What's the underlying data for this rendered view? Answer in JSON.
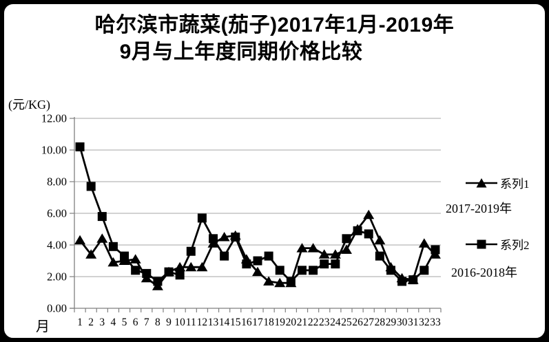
{
  "title": {
    "line1": "哈尔滨市蔬菜(茄子)2017年1月-2019年",
    "line2": "9月与上年度同期价格比较"
  },
  "y_axis_unit": "(元/KG)",
  "x_axis_title": "月",
  "legend": {
    "items": [
      {
        "label": "系列1",
        "sublabel": "2017-2019年",
        "marker": "triangle"
      },
      {
        "label": "系列2",
        "sublabel": "2016-2018年",
        "marker": "square"
      }
    ]
  },
  "colors": {
    "series": "#000000",
    "gridline": "#A6A6A6",
    "axis": "#7F7F7F",
    "background": "#FFFFFF",
    "frame": "#000000"
  },
  "chart_data": {
    "type": "line",
    "title": "哈尔滨市蔬菜(茄子)2017年1月-2019年9月与上年度同期价格比较",
    "xlabel": "月",
    "ylabel": "(元/KG)",
    "ylim": [
      0,
      12
    ],
    "ytick_step": 2,
    "ytick_labels": [
      "0.00",
      "2.00",
      "4.00",
      "6.00",
      "8.00",
      "10.00",
      "12.00"
    ],
    "grid": true,
    "legend_position": "right",
    "x": [
      "1",
      "2",
      "3",
      "4",
      "5",
      "6",
      "7",
      "8",
      "9",
      "10",
      "11",
      "12",
      "13",
      "14",
      "15",
      "16",
      "17",
      "18",
      "19",
      "20",
      "21",
      "22",
      "23",
      "24",
      "25",
      "26",
      "27",
      "28",
      "29",
      "30",
      "31",
      "32",
      "33"
    ],
    "series": [
      {
        "name": "系列1",
        "period": "2017-2019年",
        "marker": "triangle",
        "color": "#000000",
        "values": [
          4.3,
          3.4,
          4.4,
          2.9,
          3.0,
          3.1,
          1.9,
          1.4,
          2.3,
          2.6,
          2.6,
          2.6,
          4.1,
          4.5,
          4.6,
          3.1,
          2.3,
          1.7,
          1.6,
          1.6,
          3.8,
          3.8,
          3.4,
          3.4,
          3.7,
          5.0,
          5.9,
          4.3,
          2.6,
          1.9,
          1.8,
          4.1,
          3.4
        ]
      },
      {
        "name": "系列2",
        "period": "2016-2018年",
        "marker": "square",
        "color": "#000000",
        "values": [
          10.2,
          7.7,
          5.8,
          3.9,
          3.3,
          2.4,
          2.2,
          1.7,
          2.3,
          2.1,
          3.6,
          5.7,
          4.4,
          3.3,
          4.5,
          2.8,
          3.0,
          3.3,
          2.4,
          1.7,
          2.4,
          2.4,
          2.8,
          2.8,
          4.4,
          4.9,
          4.7,
          3.3,
          2.4,
          1.7,
          1.8,
          2.4,
          3.7
        ]
      }
    ]
  }
}
